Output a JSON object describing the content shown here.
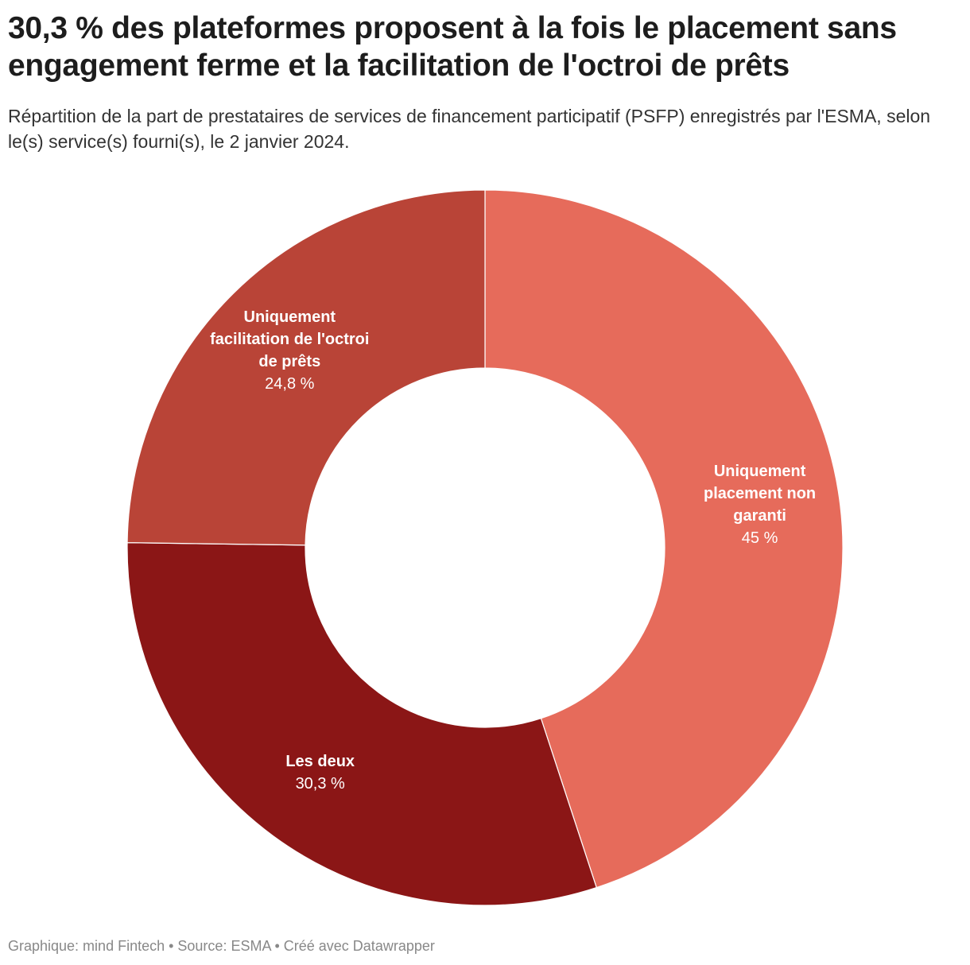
{
  "chart_data": {
    "type": "pie",
    "donut": true,
    "title": "30,3 % des plateformes proposent à la fois le placement sans engagement ferme et la facilitation de l'octroi de prêts",
    "subtitle": "Répartition de la part de prestataires de services de financement participatif (PSFP) enregistrés par l'ESMA, selon le(s) service(s) fourni(s), le 2 janvier 2024.",
    "slices": [
      {
        "label_lines": [
          "Uniquement",
          "placement non",
          "garanti"
        ],
        "value": 45,
        "value_label": "45 %",
        "color": "#e66b5b"
      },
      {
        "label_lines": [
          "Les deux"
        ],
        "value": 30.3,
        "value_label": "30,3 %",
        "color": "#8b1616"
      },
      {
        "label_lines": [
          "Uniquement",
          "facilitation de l'octroi",
          "de prêts"
        ],
        "value": 24.8,
        "value_label": "24,8 %",
        "color": "#b94437"
      }
    ],
    "start": "top",
    "direction": "clockwise",
    "footer": "Graphique: mind Fintech • Source: ESMA • Créé avec Datawrapper"
  }
}
